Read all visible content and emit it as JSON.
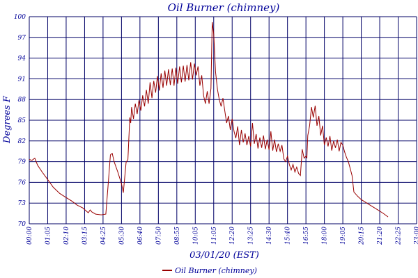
{
  "chart_data": {
    "type": "line",
    "title": "Oil Burner (chimney)",
    "xlabel": "03/01/20 (EST)",
    "ylabel": "Degrees F",
    "y_tick_labels": [
      "70",
      "73",
      "76",
      "79",
      "82",
      "85",
      "88",
      "91",
      "94",
      "97",
      "100"
    ],
    "x_tick_labels": [
      "00:00",
      "01:05",
      "02:10",
      "03:15",
      "04:25",
      "05:30",
      "06:40",
      "07:50",
      "08:55",
      "10:05",
      "11:05",
      "12:20",
      "13:25",
      "14:30",
      "15:40",
      "16:55",
      "18:00",
      "19:05",
      "20:15",
      "21:20",
      "22:25",
      "23:00"
    ],
    "ylim": [
      70,
      100
    ],
    "grid": true,
    "legend_position": "bottom-center",
    "line_color": "#990000",
    "grid_color": "#000066",
    "series": [
      {
        "name": "Oil Burner (chimney)",
        "points": [
          [
            0.0,
            79.3
          ],
          [
            0.15,
            79.2
          ],
          [
            0.3,
            79.5
          ],
          [
            0.45,
            78.5
          ],
          [
            0.7,
            77.5
          ],
          [
            1.0,
            76.4
          ],
          [
            1.3,
            75.3
          ],
          [
            1.65,
            74.4
          ],
          [
            2.0,
            73.8
          ],
          [
            2.3,
            73.3
          ],
          [
            2.6,
            72.7
          ],
          [
            2.9,
            72.3
          ],
          [
            3.2,
            71.6
          ],
          [
            3.3,
            72.0
          ],
          [
            3.4,
            71.7
          ],
          [
            3.6,
            71.4
          ],
          [
            3.9,
            71.3
          ],
          [
            4.15,
            71.4
          ],
          [
            4.3,
            76.4
          ],
          [
            4.4,
            80.0
          ],
          [
            4.5,
            80.2
          ],
          [
            4.6,
            79.0
          ],
          [
            4.8,
            77.5
          ],
          [
            5.0,
            75.8
          ],
          [
            5.1,
            74.5
          ],
          [
            5.25,
            78.9
          ],
          [
            5.35,
            79.3
          ],
          [
            5.45,
            85.4
          ],
          [
            5.5,
            84.6
          ],
          [
            5.55,
            86.9
          ],
          [
            5.65,
            85.2
          ],
          [
            5.75,
            87.4
          ],
          [
            5.85,
            85.9
          ],
          [
            5.95,
            87.9
          ],
          [
            6.05,
            86.4
          ],
          [
            6.15,
            88.6
          ],
          [
            6.25,
            87.0
          ],
          [
            6.35,
            89.4
          ],
          [
            6.45,
            87.4
          ],
          [
            6.55,
            90.5
          ],
          [
            6.65,
            88.2
          ],
          [
            6.75,
            90.7
          ],
          [
            6.85,
            89.0
          ],
          [
            6.95,
            91.4
          ],
          [
            7.05,
            89.3
          ],
          [
            7.15,
            91.8
          ],
          [
            7.25,
            89.7
          ],
          [
            7.35,
            92.2
          ],
          [
            7.45,
            90.0
          ],
          [
            7.55,
            92.4
          ],
          [
            7.65,
            90.1
          ],
          [
            7.75,
            92.5
          ],
          [
            7.85,
            90.0
          ],
          [
            7.95,
            92.6
          ],
          [
            8.05,
            90.3
          ],
          [
            8.15,
            92.8
          ],
          [
            8.25,
            90.5
          ],
          [
            8.35,
            92.9
          ],
          [
            8.45,
            90.6
          ],
          [
            8.55,
            93.0
          ],
          [
            8.65,
            90.8
          ],
          [
            8.75,
            93.4
          ],
          [
            8.85,
            90.9
          ],
          [
            8.95,
            93.2
          ],
          [
            9.05,
            91.5
          ],
          [
            9.15,
            92.8
          ],
          [
            9.25,
            90.0
          ],
          [
            9.35,
            91.5
          ],
          [
            9.45,
            88.6
          ],
          [
            9.55,
            87.4
          ],
          [
            9.65,
            89.2
          ],
          [
            9.75,
            87.4
          ],
          [
            9.85,
            89.6
          ],
          [
            9.92,
            99.2
          ],
          [
            10.0,
            97.5
          ],
          [
            10.1,
            92.0
          ],
          [
            10.2,
            89.5
          ],
          [
            10.3,
            88.0
          ],
          [
            10.4,
            87.0
          ],
          [
            10.5,
            88.2
          ],
          [
            10.6,
            86.4
          ],
          [
            10.7,
            84.6
          ],
          [
            10.8,
            85.6
          ],
          [
            10.9,
            83.6
          ],
          [
            11.0,
            85.2
          ],
          [
            11.1,
            83.4
          ],
          [
            11.2,
            82.4
          ],
          [
            11.3,
            84.1
          ],
          [
            11.4,
            81.4
          ],
          [
            11.5,
            83.6
          ],
          [
            11.6,
            81.8
          ],
          [
            11.7,
            83.1
          ],
          [
            11.8,
            81.4
          ],
          [
            11.9,
            82.7
          ],
          [
            12.0,
            81.2
          ],
          [
            12.1,
            84.6
          ],
          [
            12.2,
            81.6
          ],
          [
            12.3,
            83.0
          ],
          [
            12.4,
            80.9
          ],
          [
            12.5,
            82.5
          ],
          [
            12.6,
            81.0
          ],
          [
            12.7,
            82.8
          ],
          [
            12.8,
            80.8
          ],
          [
            12.9,
            82.2
          ],
          [
            13.0,
            80.7
          ],
          [
            13.1,
            83.4
          ],
          [
            13.2,
            80.6
          ],
          [
            13.3,
            82.2
          ],
          [
            13.4,
            80.4
          ],
          [
            13.5,
            81.6
          ],
          [
            13.6,
            80.5
          ],
          [
            13.7,
            81.4
          ],
          [
            13.8,
            79.4
          ],
          [
            13.9,
            79.0
          ],
          [
            14.0,
            79.8
          ],
          [
            14.1,
            78.6
          ],
          [
            14.2,
            77.8
          ],
          [
            14.3,
            78.6
          ],
          [
            14.4,
            77.5
          ],
          [
            14.5,
            78.2
          ],
          [
            14.6,
            77.3
          ],
          [
            14.7,
            77.0
          ],
          [
            14.8,
            80.8
          ],
          [
            14.9,
            79.5
          ],
          [
            15.0,
            79.8
          ],
          [
            15.05,
            79.5
          ],
          [
            15.1,
            82.8
          ],
          [
            15.2,
            84.2
          ],
          [
            15.3,
            86.9
          ],
          [
            15.4,
            85.4
          ],
          [
            15.5,
            87.1
          ],
          [
            15.6,
            84.2
          ],
          [
            15.7,
            85.6
          ],
          [
            15.8,
            82.8
          ],
          [
            15.9,
            84.2
          ],
          [
            16.0,
            81.4
          ],
          [
            16.1,
            82.5
          ],
          [
            16.2,
            81.2
          ],
          [
            16.3,
            82.7
          ],
          [
            16.4,
            80.6
          ],
          [
            16.5,
            82.0
          ],
          [
            16.6,
            81.0
          ],
          [
            16.7,
            82.2
          ],
          [
            16.8,
            80.5
          ],
          [
            16.9,
            81.8
          ],
          [
            17.0,
            81.4
          ],
          [
            17.1,
            80.4
          ],
          [
            17.2,
            79.6
          ],
          [
            17.3,
            79.0
          ],
          [
            17.4,
            78.0
          ],
          [
            17.5,
            77.0
          ],
          [
            17.6,
            74.6
          ],
          [
            17.8,
            74.0
          ],
          [
            18.0,
            73.5
          ],
          [
            18.3,
            73.0
          ],
          [
            18.6,
            72.5
          ],
          [
            18.9,
            72.0
          ],
          [
            19.2,
            71.5
          ],
          [
            19.45,
            71.0
          ]
        ]
      }
    ]
  }
}
